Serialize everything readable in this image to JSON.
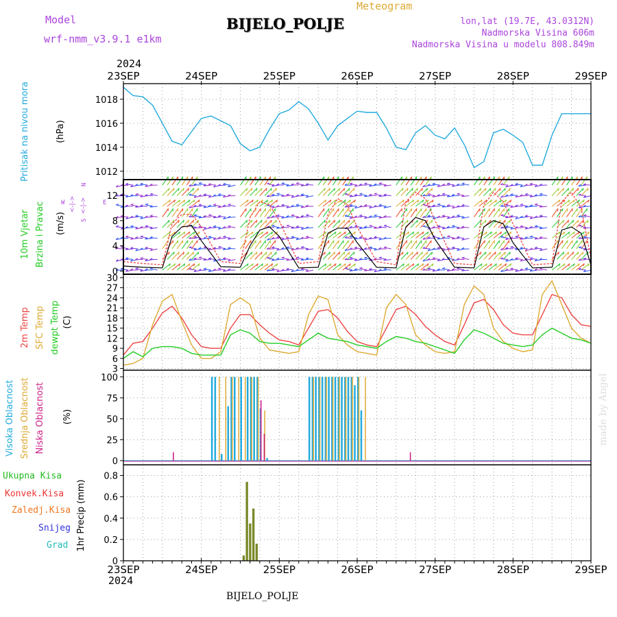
{
  "header": {
    "model_label": "Model",
    "model_name": "wrf-nmm_v3.9.1 e1km",
    "title": "BIJELO_POLJE",
    "subtitle": "Meteogram",
    "lonlat": "lon,lat (19.7E, 43.0312N)",
    "elev": "Nadmorska Visina 606m",
    "elev_model": "Nadmorska Visina u modelu 808.849m",
    "year_top": "2024",
    "year_bottom": "2024",
    "footer_station": "BIJELO_POLJE",
    "watermark": "made by Angel"
  },
  "colors": {
    "pressure": "#22aadd",
    "wind_label": "#22cc22",
    "wind_dir": "#aa44dd",
    "temp2m": "#ee4444",
    "sfc_temp": "#ddaa33",
    "dewpoint": "#22cc22",
    "high_cloud": "#22aadd",
    "mid_cloud": "#ddaa33",
    "low_cloud": "#cc2288",
    "total_precip": "#22bb22",
    "conv_precip": "#ee3333",
    "frozen_precip": "#ee7722",
    "snow": "#3333dd",
    "hail": "#22bbbb",
    "precip_bar": "#7a8a2a"
  },
  "chart_data": [
    {
      "type": "line",
      "panel": "pressure",
      "ylabel_rotated": "Pritisak na nivou mora",
      "unit": "(hPa)",
      "yticks": [
        1012,
        1014,
        1016,
        1018
      ],
      "ylim": [
        1011.3,
        1019.3
      ],
      "x_ticks": [
        "23SEP",
        "24SEP",
        "25SEP",
        "26SEP",
        "27SEP",
        "28SEP",
        "29SEP"
      ],
      "x_hours": [
        0,
        3,
        6,
        9,
        12,
        15,
        18,
        21,
        24,
        27,
        30,
        33,
        36,
        39,
        42,
        45,
        48,
        51,
        54,
        57,
        60,
        63,
        66,
        69,
        72,
        75,
        78,
        81,
        84,
        87,
        90,
        93,
        96,
        99,
        102,
        105,
        108,
        111,
        114,
        117,
        120,
        123,
        126,
        129,
        132,
        135,
        138,
        141,
        144
      ],
      "values": [
        1019.0,
        1018.3,
        1018.2,
        1017.5,
        1016.0,
        1014.5,
        1014.2,
        1015.3,
        1016.4,
        1016.6,
        1016.2,
        1015.8,
        1014.3,
        1013.7,
        1014.0,
        1015.5,
        1016.8,
        1017.1,
        1017.8,
        1017.2,
        1016.0,
        1014.6,
        1015.8,
        1016.4,
        1017.0,
        1016.9,
        1016.9,
        1015.6,
        1014.0,
        1013.8,
        1015.2,
        1015.8,
        1015.0,
        1014.7,
        1015.6,
        1014.2,
        1012.3,
        1012.8,
        1015.2,
        1015.5,
        1015.0,
        1014.4,
        1012.5,
        1012.5,
        1015.0,
        1016.8,
        1016.8,
        1016.8,
        1016.8
      ],
      "grid": true
    },
    {
      "type": "line",
      "panel": "wind",
      "ylabel_rotated_1": "10m Vjetar",
      "ylabel_rotated_2": "Brzina i Pravac",
      "unit": "(m/s)",
      "compass_w": "W",
      "compass_e": "E",
      "compass_n": "N",
      "compass_s": "S",
      "yticks": [
        0,
        4,
        8,
        12
      ],
      "ylim": [
        -0.5,
        14.5
      ],
      "wind_speed": {
        "x_hours": [
          0,
          6,
          12,
          15,
          18,
          21,
          24,
          30,
          36,
          39,
          42,
          45,
          48,
          54,
          60,
          63,
          66,
          69,
          72,
          78,
          84,
          87,
          90,
          93,
          96,
          102,
          108,
          111,
          114,
          117,
          120,
          126,
          132,
          135,
          138,
          141,
          144
        ],
        "values": [
          0.8,
          0.6,
          0.5,
          5.5,
          7.0,
          7.2,
          4.8,
          0.7,
          0.6,
          4.0,
          6.5,
          7.0,
          5.5,
          0.5,
          0.6,
          6.0,
          6.8,
          6.8,
          4.5,
          0.6,
          0.5,
          7.0,
          8.5,
          8.0,
          5.0,
          0.6,
          0.5,
          7.0,
          8.0,
          7.5,
          4.5,
          0.5,
          0.6,
          6.5,
          7.0,
          6.0,
          1.0
        ]
      },
      "wind_gust": {
        "x_hours": [
          0,
          6,
          12,
          15,
          18,
          21,
          24,
          30,
          36,
          39,
          42,
          45,
          48,
          54,
          60,
          63,
          66,
          69,
          72,
          78,
          84,
          87,
          90,
          93,
          96,
          102,
          108,
          111,
          114,
          117,
          120,
          126,
          132,
          135,
          138,
          141,
          144
        ],
        "values": [
          1.5,
          1.2,
          1.0,
          7.5,
          9.0,
          9.0,
          7.0,
          1.5,
          1.2,
          8.5,
          11.0,
          10.5,
          8.0,
          1.2,
          1.5,
          9.0,
          11.5,
          10.5,
          7.0,
          1.5,
          1.0,
          11.0,
          12.5,
          11.5,
          8.0,
          1.2,
          1.0,
          10.5,
          12.5,
          11.0,
          7.5,
          1.0,
          1.2,
          11.0,
          12.5,
          10.0,
          2.0
        ]
      }
    },
    {
      "type": "line",
      "panel": "temperature",
      "ylabel_rotated_1": "2m Temp",
      "ylabel_rotated_2": "SFC Temp",
      "ylabel_rotated_3": "dewpt Temp",
      "unit": "(C)",
      "yticks": [
        3,
        6,
        9,
        12,
        15,
        18,
        21,
        24,
        27,
        30
      ],
      "ylim": [
        2.5,
        31
      ],
      "x_hours": [
        0,
        3,
        6,
        9,
        12,
        15,
        18,
        21,
        24,
        27,
        30,
        33,
        36,
        39,
        42,
        45,
        48,
        51,
        54,
        57,
        60,
        63,
        66,
        69,
        72,
        75,
        78,
        81,
        84,
        87,
        90,
        93,
        96,
        99,
        102,
        105,
        108,
        111,
        114,
        117,
        120,
        123,
        126,
        129,
        132,
        135,
        138,
        141,
        144
      ],
      "series": [
        {
          "name": "2m Temp",
          "values": [
            7.0,
            10.5,
            11.0,
            15.0,
            19.5,
            21.5,
            18.0,
            13.0,
            9.5,
            9.0,
            9.0,
            15.0,
            19.0,
            19.0,
            16.0,
            13.5,
            11.5,
            11.0,
            10.0,
            15.0,
            20.0,
            20.5,
            18.0,
            14.0,
            11.0,
            10.0,
            9.5,
            15.0,
            20.5,
            21.5,
            19.0,
            15.5,
            13.0,
            11.0,
            10.0,
            16.0,
            22.5,
            23.5,
            20.5,
            16.0,
            13.5,
            13.0,
            13.0,
            19.0,
            25.0,
            24.0,
            19.0,
            16.0,
            15.5
          ]
        },
        {
          "name": "SFC Temp",
          "values": [
            4.0,
            4.5,
            6.0,
            16.0,
            23.0,
            25.0,
            17.0,
            10.0,
            6.0,
            6.0,
            8.0,
            22.0,
            24.0,
            22.0,
            12.0,
            8.5,
            8.0,
            7.5,
            8.0,
            19.0,
            24.5,
            23.5,
            13.0,
            10.0,
            8.0,
            7.5,
            7.0,
            21.0,
            25.0,
            22.0,
            13.0,
            10.0,
            8.0,
            7.5,
            8.0,
            22.0,
            27.5,
            25.0,
            15.0,
            11.0,
            9.0,
            8.0,
            8.5,
            25.0,
            29.0,
            22.0,
            15.0,
            12.0,
            10.5
          ]
        },
        {
          "name": "dewpt Temp",
          "values": [
            6.0,
            8.0,
            6.5,
            9.0,
            9.5,
            9.5,
            9.0,
            7.5,
            7.0,
            7.0,
            7.0,
            13.0,
            14.5,
            13.5,
            11.0,
            10.5,
            10.5,
            10.0,
            9.5,
            11.5,
            13.5,
            12.0,
            11.5,
            11.0,
            10.0,
            9.5,
            9.0,
            11.0,
            12.5,
            12.0,
            11.0,
            10.5,
            9.5,
            8.5,
            7.5,
            11.5,
            14.5,
            13.5,
            12.0,
            10.5,
            10.0,
            9.5,
            10.0,
            13.0,
            15.0,
            13.5,
            12.0,
            11.5,
            10.5
          ]
        }
      ]
    },
    {
      "type": "bar",
      "panel": "cloud",
      "ylabel_rotated_1": "Visoka Oblacnost",
      "ylabel_rotated_2": "Srednja Oblacnost",
      "ylabel_rotated_3": "Niska Oblacnost",
      "unit": "(%)",
      "yticks": [
        0,
        25,
        50,
        75,
        100
      ],
      "ylim": [
        -5,
        108
      ],
      "high_cloud": {
        "x_hours": [
          27,
          28,
          30,
          32,
          33,
          34,
          36,
          38,
          39,
          40,
          41,
          42,
          44,
          57,
          58,
          59,
          60,
          61,
          62,
          63,
          64,
          65,
          66,
          67,
          68,
          69,
          70,
          71,
          72,
          73
        ],
        "values": [
          100,
          100,
          8,
          65,
          100,
          100,
          100,
          100,
          100,
          100,
          100,
          62,
          3,
          100,
          100,
          100,
          100,
          100,
          100,
          100,
          100,
          100,
          100,
          100,
          100,
          100,
          100,
          90,
          100,
          60
        ]
      },
      "mid_cloud": {
        "x_hours": [
          29,
          31,
          33,
          35,
          37,
          39,
          41,
          43,
          58,
          60,
          62,
          64,
          66,
          68,
          70,
          72,
          74
        ],
        "values": [
          100,
          100,
          100,
          100,
          100,
          100,
          100,
          60,
          100,
          100,
          100,
          100,
          100,
          100,
          100,
          100,
          100
        ]
      },
      "low_cloud": {
        "x_hours": [
          15,
          42,
          43,
          88
        ],
        "values": [
          10,
          72,
          32,
          10
        ]
      }
    },
    {
      "type": "bar",
      "panel": "precip",
      "legend": [
        "Ukupna Kisa",
        "Konvek.Kisa",
        "Zaledj.Kisa",
        "Snijeg",
        "Grad"
      ],
      "ylabel": "1hr Precip (mm)",
      "yticks": [
        0,
        0.2,
        0.4,
        0.6,
        0.8
      ],
      "ylim": [
        0,
        0.9
      ],
      "x_hours": [
        37,
        38,
        39,
        40,
        41
      ],
      "values": [
        0.05,
        0.74,
        0.35,
        0.49,
        0.16
      ]
    }
  ],
  "x_axis": {
    "labels": [
      "23SEP",
      "24SEP",
      "25SEP",
      "26SEP",
      "27SEP",
      "28SEP",
      "29SEP"
    ],
    "range_hours": [
      0,
      144
    ]
  }
}
